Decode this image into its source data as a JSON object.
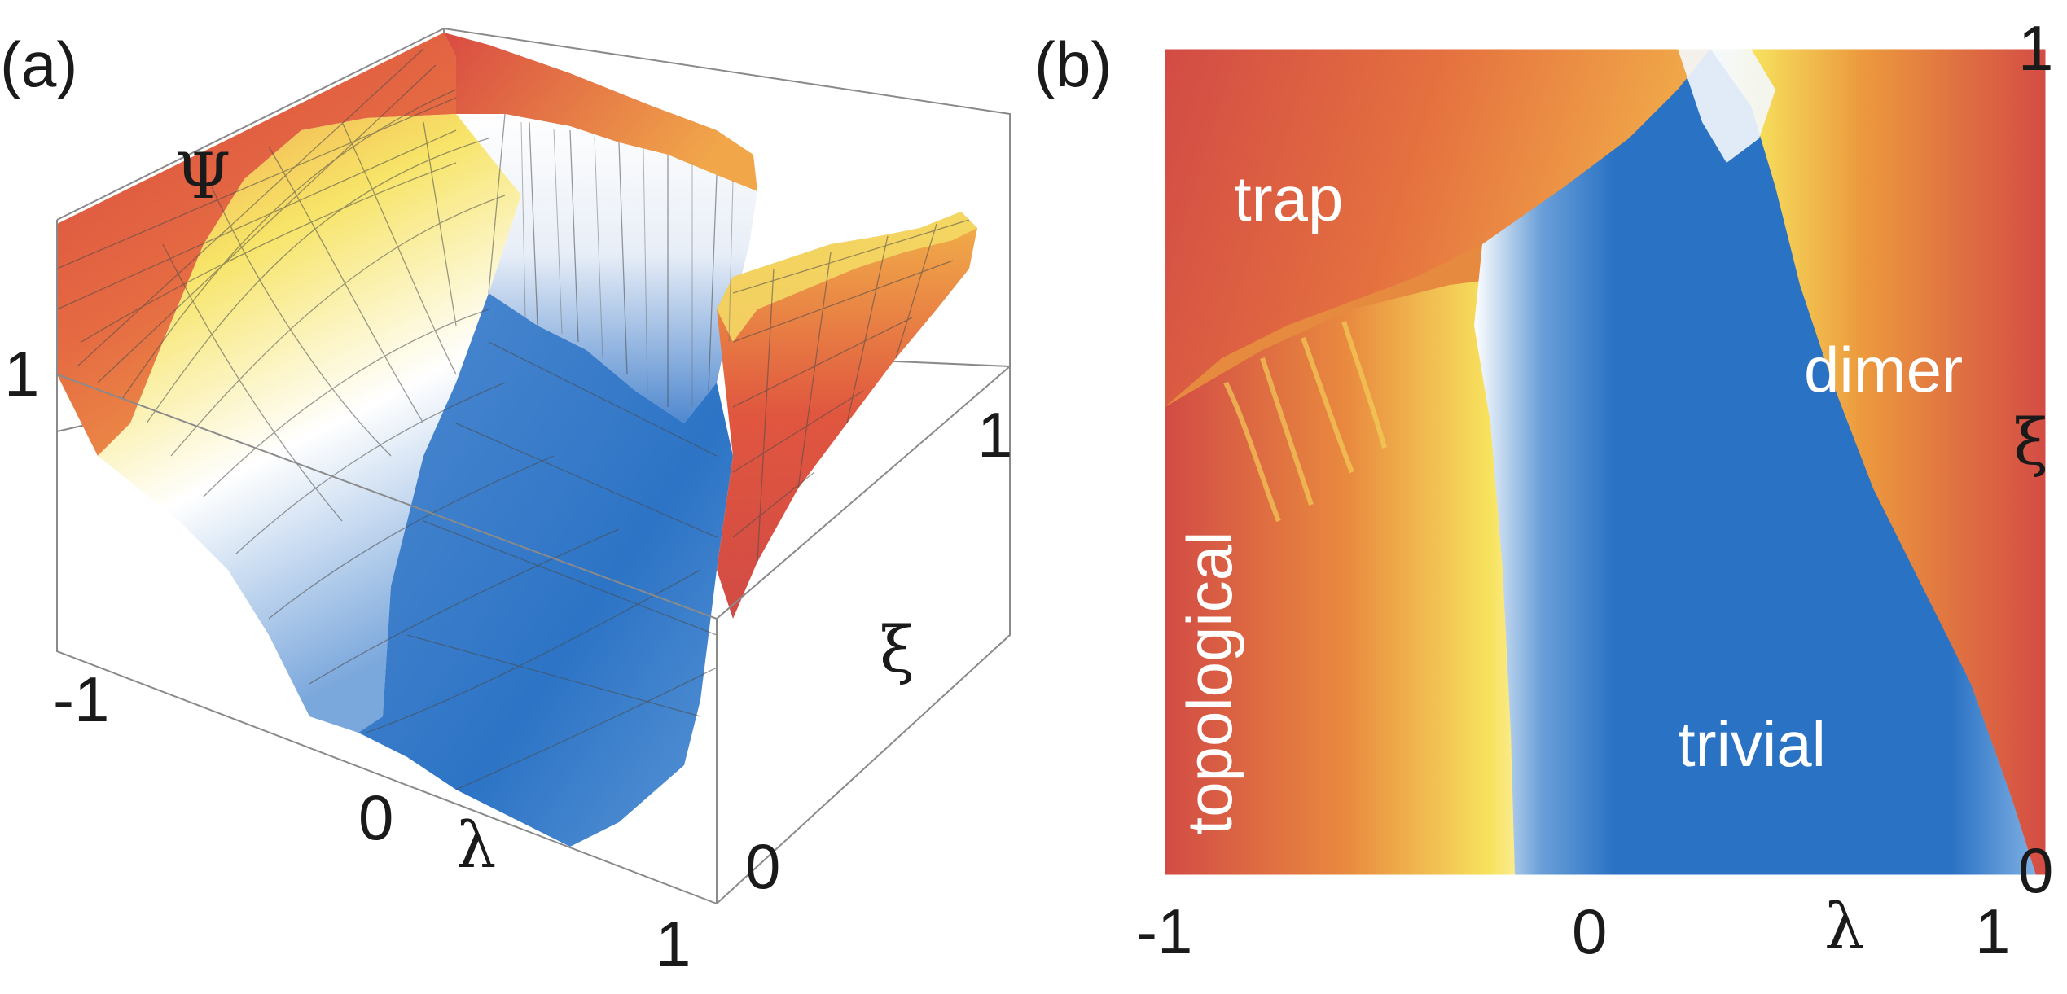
{
  "chart_data": [
    {
      "type": "surface3d",
      "panel_label": "(a)",
      "z_label": "Ψ",
      "x_label": "λ",
      "y_label": "ξ",
      "z_ticks": [
        "1"
      ],
      "x_ticks": [
        "-1",
        "0",
        "1"
      ],
      "y_ticks": [
        "0",
        "1"
      ],
      "xlim": [
        -1,
        1
      ],
      "ylim": [
        0,
        1
      ],
      "zlim": [
        0,
        1
      ],
      "colors": [
        "#d24b45",
        "#ef9a3c",
        "#f7e660",
        "#ffffff",
        "#2a72c4"
      ]
    },
    {
      "type": "heatmap",
      "panel_label": "(b)",
      "x_label": "λ",
      "y_label": "ξ",
      "x_ticks": [
        "-1",
        "0",
        "1"
      ],
      "y_ticks": [
        "0",
        "1"
      ],
      "xlim": [
        -1,
        1
      ],
      "ylim": [
        0,
        1
      ],
      "regions": [
        "trap",
        "dimer",
        "topological",
        "trivial"
      ],
      "colors": [
        "#d24b45",
        "#ef9a3c",
        "#f7e660",
        "#ffffff",
        "#2a72c4"
      ]
    }
  ]
}
